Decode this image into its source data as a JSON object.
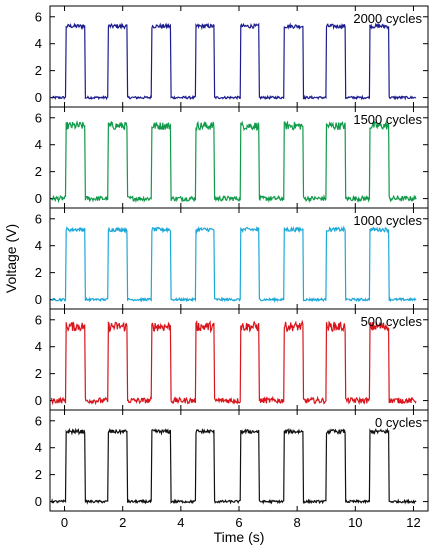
{
  "chart_data": {
    "type": "line",
    "layout": "stacked-panels",
    "xlabel": "Time (s)",
    "ylabel": "Voltage (V)",
    "xlim": [
      -0.5,
      12.5
    ],
    "ylim": [
      -0.7,
      6.8
    ],
    "x_ticks": [
      0,
      2,
      4,
      6,
      8,
      10,
      12
    ],
    "y_ticks": [
      0,
      2,
      4,
      6
    ],
    "pulse_high_V": 5.3,
    "pulse_low_V": 0.0,
    "pulse_starts_s": [
      0.05,
      1.5,
      3.0,
      4.5,
      6.05,
      7.55,
      9.0,
      10.5
    ],
    "pulse_width_s": 0.65,
    "trace_start_s": -0.45,
    "trace_end_s": 12.1,
    "panels": [
      {
        "label": "2000 cycles",
        "color": "#1c1c8e",
        "high": 5.3,
        "noise": 0.15
      },
      {
        "label": "1500 cycles",
        "color": "#119a4a",
        "high": 5.4,
        "noise": 0.3
      },
      {
        "label": "1000 cycles",
        "color": "#1ea8d8",
        "high": 5.2,
        "noise": 0.15
      },
      {
        "label": "500 cycles",
        "color": "#d8151c",
        "high": 5.5,
        "noise": 0.35
      },
      {
        "label": "0 cycles",
        "color": "#111111",
        "high": 5.2,
        "noise": 0.15
      }
    ]
  }
}
